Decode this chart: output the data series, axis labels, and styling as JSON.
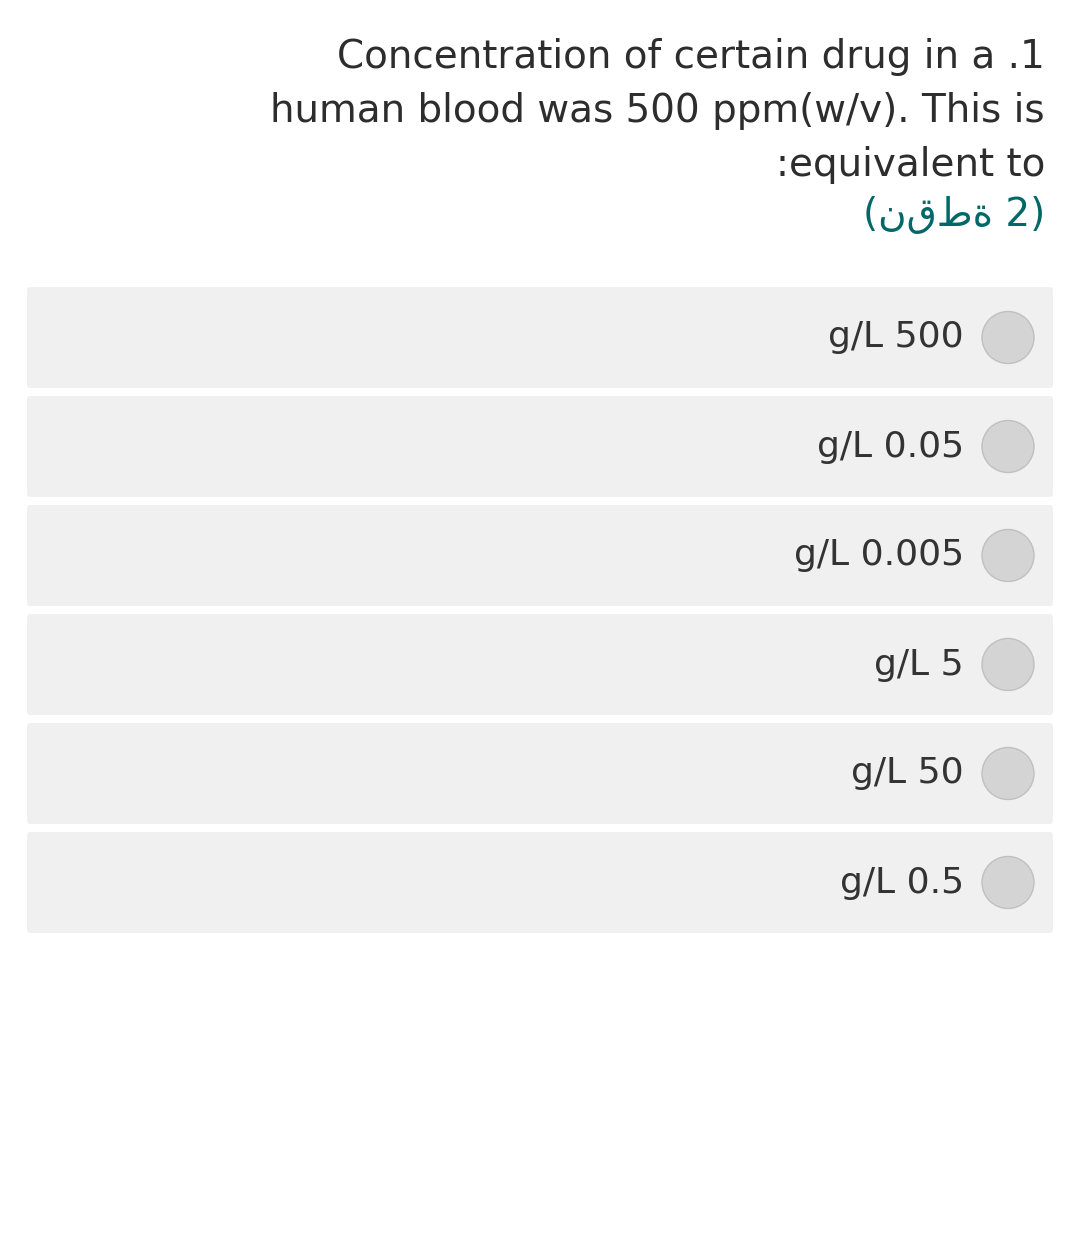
{
  "title_line1": "Concentration of certain drug in a .1",
  "title_line2": "human blood was 500 ppm(w/v). This is",
  "title_line3": ":equivalent to",
  "title_line4": "(نقطة 2)",
  "options": [
    "g/L 500",
    "g/L 0.05",
    "g/L 0.005",
    "g/L 5",
    "g/L 50",
    "g/L 0.5"
  ],
  "bg_color": "#ffffff",
  "option_bg_color": "#f0f0f0",
  "option_text_color": "#333333",
  "title_text_color": "#2d2d2d",
  "arabic_text_color": "#006868",
  "radio_fill_color": "#d4d4d4",
  "radio_edge_color": "#c0c0c0",
  "title_fontsize": 28,
  "option_fontsize": 26,
  "arabic_fontsize": 28,
  "fig_width": 10.8,
  "fig_height": 12.55,
  "dpi": 100
}
